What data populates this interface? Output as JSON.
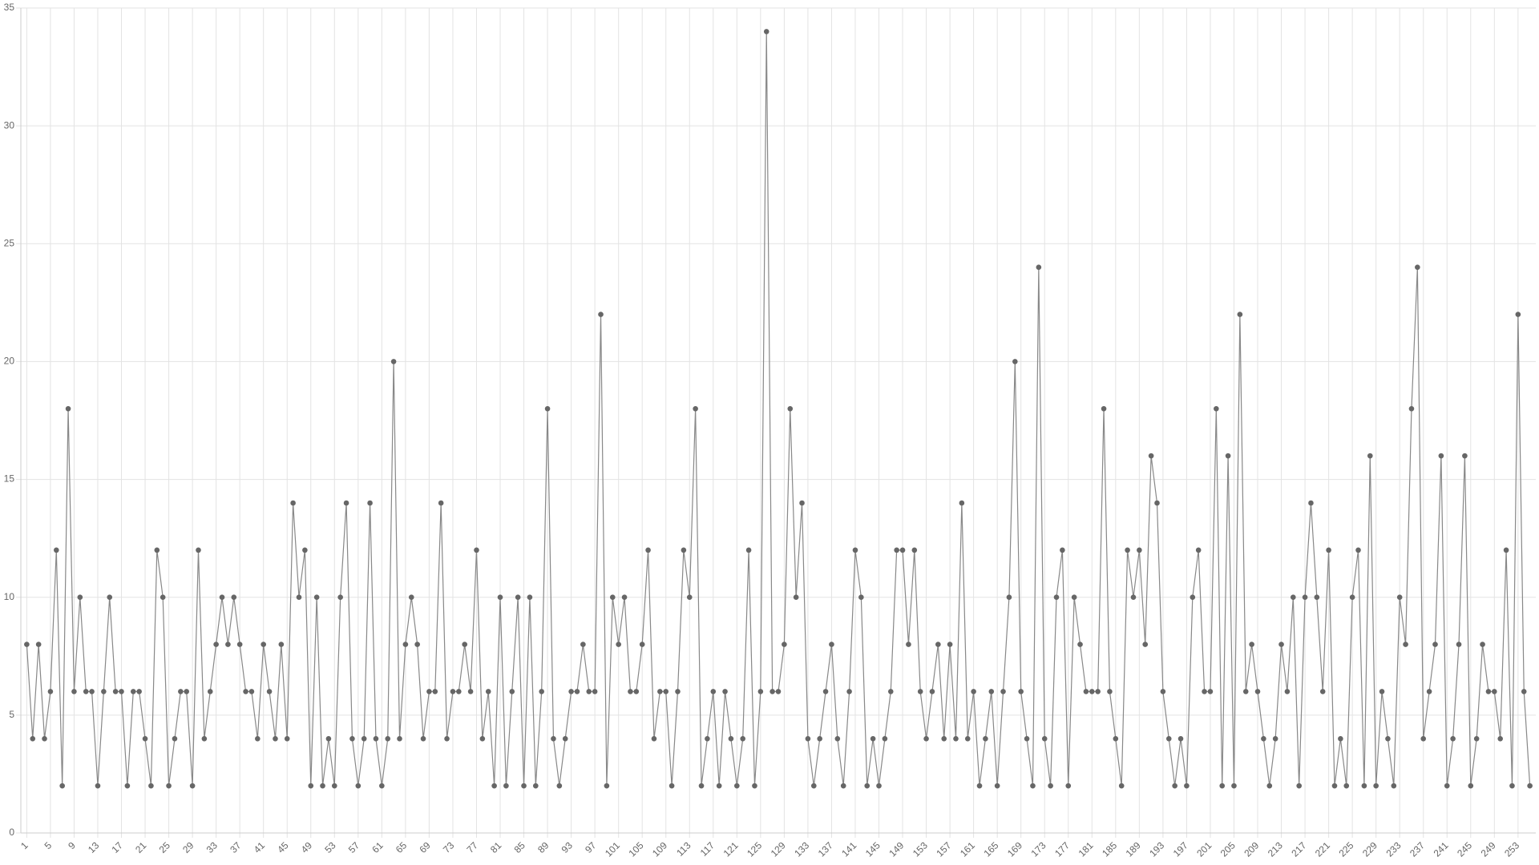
{
  "chart_data": {
    "type": "line",
    "x": [
      1,
      2,
      3,
      4,
      5,
      6,
      7,
      8,
      9,
      10,
      11,
      12,
      13,
      14,
      15,
      16,
      17,
      18,
      19,
      20,
      21,
      22,
      23,
      24,
      25,
      26,
      27,
      28,
      29,
      30,
      31,
      32,
      33,
      34,
      35,
      36,
      37,
      38,
      39,
      40,
      41,
      42,
      43,
      44,
      45,
      46,
      47,
      48,
      49,
      50,
      51,
      52,
      53,
      54,
      55,
      56,
      57,
      58,
      59,
      60,
      61,
      62,
      63,
      64,
      65,
      66,
      67,
      68,
      69,
      70,
      71,
      72,
      73,
      74,
      75,
      76,
      77,
      78,
      79,
      80,
      81,
      82,
      83,
      84,
      85,
      86,
      87,
      88,
      89,
      90,
      91,
      92,
      93,
      94,
      95,
      96,
      97,
      98,
      99,
      100,
      101,
      102,
      103,
      104,
      105,
      106,
      107,
      108,
      109,
      110,
      111,
      112,
      113,
      114,
      115,
      116,
      117,
      118,
      119,
      120,
      121,
      122,
      123,
      124,
      125,
      126,
      127,
      128,
      129,
      130,
      131,
      132,
      133,
      134,
      135,
      136,
      137,
      138,
      139,
      140,
      141,
      142,
      143,
      144,
      145,
      146,
      147,
      148,
      149,
      150,
      151,
      152,
      153,
      154,
      155,
      156,
      157,
      158,
      159,
      160,
      161,
      162,
      163,
      164,
      165,
      166,
      167,
      168,
      169,
      170,
      171,
      172,
      173,
      174,
      175,
      176,
      177,
      178,
      179,
      180,
      181,
      182,
      183,
      184,
      185,
      186,
      187,
      188,
      189,
      190,
      191,
      192,
      193,
      194,
      195,
      196,
      197,
      198,
      199,
      200,
      201,
      202,
      203,
      204,
      205,
      206,
      207,
      208,
      209,
      210,
      211,
      212,
      213,
      214,
      215,
      216,
      217,
      218,
      219,
      220,
      221,
      222,
      223,
      224,
      225,
      226,
      227,
      228,
      229,
      230,
      231,
      232,
      233,
      234,
      235,
      236,
      237,
      238,
      239,
      240,
      241,
      242,
      243,
      244,
      245,
      246,
      247,
      248,
      249,
      250,
      251,
      252,
      253,
      254,
      255
    ],
    "series": [
      {
        "color": "#666666",
        "values": [
          8,
          4,
          8,
          4,
          6,
          12,
          2,
          18,
          6,
          10,
          6,
          6,
          2,
          6,
          10,
          6,
          6,
          2,
          6,
          6,
          4,
          2,
          12,
          10,
          2,
          4,
          6,
          6,
          2,
          12,
          4,
          6,
          8,
          10,
          8,
          10,
          8,
          6,
          6,
          4,
          8,
          6,
          4,
          8,
          4,
          14,
          10,
          12,
          2,
          10,
          2,
          4,
          2,
          10,
          14,
          4,
          2,
          4,
          14,
          4,
          2,
          4,
          20,
          4,
          8,
          10,
          8,
          4,
          6,
          6,
          14,
          4,
          6,
          6,
          8,
          6,
          12,
          4,
          6,
          2,
          10,
          2,
          6,
          10,
          2,
          10,
          2,
          6,
          18,
          4,
          2,
          4,
          6,
          6,
          8,
          6,
          6,
          22,
          2,
          10,
          8,
          10,
          6,
          6,
          8,
          12,
          4,
          6,
          6,
          2,
          6,
          12,
          10,
          18,
          2,
          4,
          6,
          2,
          6,
          4,
          2,
          4,
          12,
          2,
          6,
          34,
          6,
          6,
          8,
          18,
          10,
          14,
          4,
          2,
          4,
          6,
          8,
          4,
          2,
          6,
          12,
          10,
          2,
          4,
          2,
          4,
          6,
          12,
          12,
          8,
          12,
          6,
          4,
          6,
          8,
          4,
          8,
          4,
          14,
          4,
          6,
          2,
          4,
          6,
          2,
          6,
          10,
          20,
          6,
          4,
          2,
          24,
          4,
          2,
          10,
          12,
          2,
          10,
          8,
          6,
          6,
          6,
          18,
          6,
          4,
          2,
          12,
          10,
          12,
          8,
          16,
          14,
          6,
          4,
          2,
          4,
          2,
          10,
          12,
          6,
          6,
          18,
          2,
          16,
          2,
          22,
          6,
          8,
          6,
          4,
          2,
          4,
          8,
          6,
          10,
          2,
          10,
          14,
          10,
          6,
          12,
          2,
          4,
          2,
          10,
          12,
          2,
          16,
          2,
          6,
          4,
          2,
          10,
          8,
          18,
          24,
          4,
          6,
          8,
          16,
          2,
          4,
          8,
          16,
          2,
          4,
          8,
          6,
          6,
          4,
          12,
          2,
          22,
          6,
          2
        ]
      }
    ],
    "xlim": [
      0,
      256
    ],
    "xticks": [
      1,
      5,
      9,
      13,
      17,
      21,
      25,
      29,
      33,
      37,
      41,
      45,
      49,
      53,
      57,
      61,
      65,
      69,
      73,
      77,
      81,
      85,
      89,
      93,
      97,
      101,
      105,
      109,
      113,
      117,
      121,
      125,
      129,
      133,
      137,
      141,
      145,
      149,
      153,
      157,
      161,
      165,
      169,
      173,
      177,
      181,
      185,
      189,
      193,
      197,
      201,
      205,
      209,
      213,
      217,
      221,
      225,
      229,
      233,
      237,
      241,
      245,
      249,
      253
    ],
    "ylim": [
      0,
      35
    ],
    "yticks": [
      0,
      5,
      10,
      15,
      20,
      25,
      30,
      35
    ],
    "grid": true
  }
}
